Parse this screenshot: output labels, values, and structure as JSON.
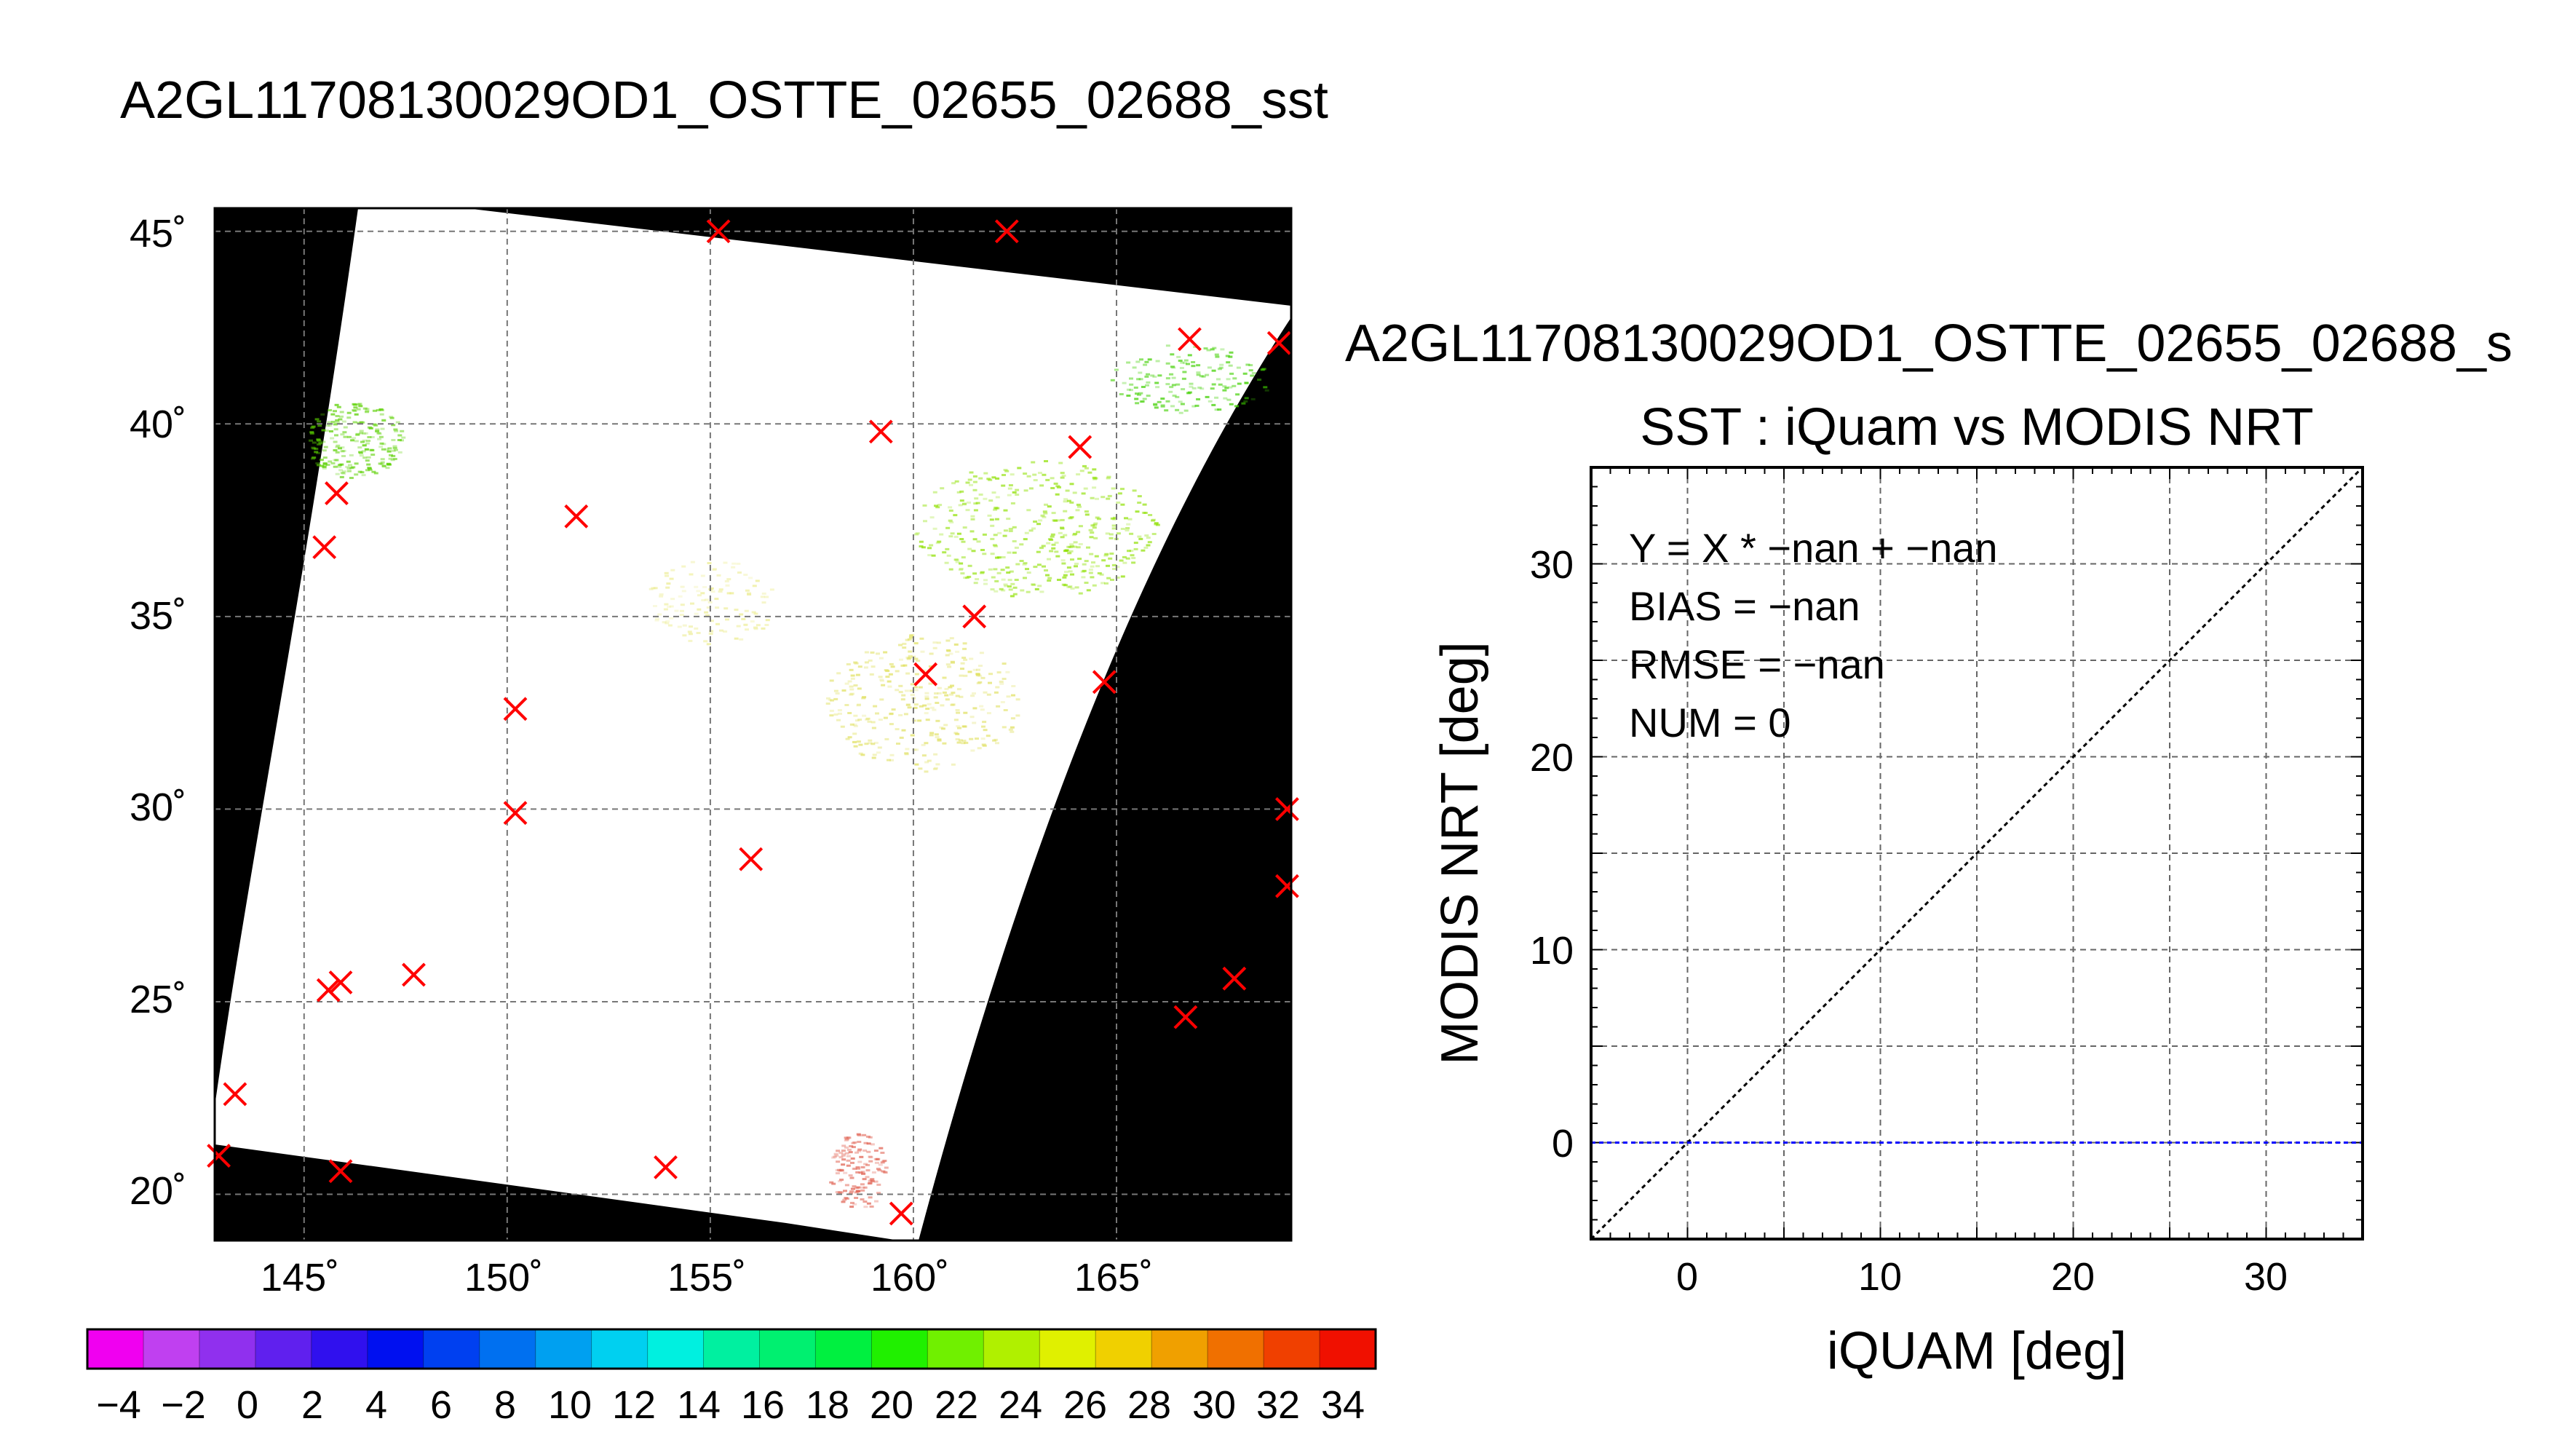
{
  "map": {
    "title": "A2GL11708130029OD1_OSTTE_02655_02688_sst",
    "lon_ticks": [
      "145˚",
      "150˚",
      "155˚",
      "160˚",
      "165˚"
    ],
    "lat_ticks": [
      "45˚",
      "40˚",
      "35˚",
      "30˚",
      "25˚",
      "20˚"
    ],
    "colorbar_labels": [
      "−4",
      "−2",
      "0",
      "2",
      "4",
      "6",
      "8",
      "10",
      "12",
      "14",
      "16",
      "18",
      "20",
      "22",
      "24",
      "26",
      "28",
      "30",
      "32",
      "34"
    ]
  },
  "scatter": {
    "file_title": "A2GL11708130029OD1_OSTTE_02655_02688_s",
    "title": "SST : iQuam vs MODIS NRT",
    "xlabel": "iQUAM [deg]",
    "ylabel": "MODIS NRT [deg]",
    "stats": [
      "Y = X * −nan + −nan",
      "BIAS = −nan",
      "RMSE = −nan",
      "NUM = 0"
    ],
    "x_ticks": [
      "0",
      "10",
      "20",
      "30"
    ],
    "y_ticks": [
      "0",
      "10",
      "20",
      "30"
    ]
  },
  "chart_data": [
    {
      "type": "heatmap",
      "title": "A2GL11708130029OD1_OSTTE_02655_02688_sst",
      "xlim": [
        142.8,
        169.3
      ],
      "ylim": [
        18.8,
        45.6
      ],
      "x_ticks": [
        145,
        150,
        155,
        160,
        165
      ],
      "y_ticks": [
        20,
        25,
        30,
        35,
        40,
        45
      ],
      "grid": true,
      "colorbar": {
        "min": -5,
        "max": 35,
        "ticks": [
          -4,
          -2,
          0,
          2,
          4,
          6,
          8,
          10,
          12,
          14,
          16,
          18,
          20,
          22,
          24,
          26,
          28,
          30,
          32,
          34
        ],
        "colors": [
          "#f000f0",
          "#c040f0",
          "#9030ee",
          "#6020ee",
          "#3010ee",
          "#0010f0",
          "#0040f0",
          "#0070f0",
          "#00a0f0",
          "#00d0f0",
          "#00f0e0",
          "#00f0a0",
          "#00f070",
          "#00f040",
          "#20f000",
          "#70f000",
          "#b0f000",
          "#e0f000",
          "#f0d000",
          "#f0a000",
          "#f07000",
          "#f04000",
          "#f01000"
        ]
      },
      "markers": {
        "symbol": "x",
        "color": "#ff0000",
        "points": [
          {
            "lon": 155.2,
            "lat": 45.0
          },
          {
            "lon": 162.3,
            "lat": 45.0
          },
          {
            "lon": 166.8,
            "lat": 42.2
          },
          {
            "lon": 169.0,
            "lat": 42.1
          },
          {
            "lon": 159.2,
            "lat": 39.8
          },
          {
            "lon": 164.1,
            "lat": 39.4
          },
          {
            "lon": 145.8,
            "lat": 38.2
          },
          {
            "lon": 145.5,
            "lat": 36.8
          },
          {
            "lon": 151.7,
            "lat": 37.6
          },
          {
            "lon": 161.5,
            "lat": 35.0
          },
          {
            "lon": 160.3,
            "lat": 33.5
          },
          {
            "lon": 164.7,
            "lat": 33.3
          },
          {
            "lon": 150.2,
            "lat": 32.6
          },
          {
            "lon": 150.2,
            "lat": 29.9
          },
          {
            "lon": 156.0,
            "lat": 28.7
          },
          {
            "lon": 169.2,
            "lat": 30.0
          },
          {
            "lon": 169.2,
            "lat": 28.0
          },
          {
            "lon": 145.6,
            "lat": 25.3
          },
          {
            "lon": 145.9,
            "lat": 25.5
          },
          {
            "lon": 147.7,
            "lat": 25.7
          },
          {
            "lon": 167.9,
            "lat": 25.6
          },
          {
            "lon": 166.7,
            "lat": 24.6
          },
          {
            "lon": 143.3,
            "lat": 22.6
          },
          {
            "lon": 142.9,
            "lat": 21.0
          },
          {
            "lon": 145.9,
            "lat": 20.6
          },
          {
            "lon": 153.9,
            "lat": 20.7
          },
          {
            "lon": 159.7,
            "lat": 19.5
          }
        ]
      }
    },
    {
      "type": "scatter",
      "title": "SST : iQuam vs MODIS NRT",
      "xlabel": "iQUAM [deg]",
      "ylabel": "MODIS NRT [deg]",
      "xlim": [
        -5,
        35
      ],
      "ylim": [
        -5,
        35
      ],
      "x_ticks": [
        0,
        10,
        20,
        30
      ],
      "y_ticks": [
        0,
        10,
        20,
        30
      ],
      "grid": true,
      "points": [],
      "reference_lines": [
        {
          "kind": "identity",
          "from": [
            -5,
            -5
          ],
          "to": [
            35,
            35
          ],
          "color": "#000000"
        },
        {
          "kind": "horizontal",
          "y": 0,
          "color": "#0000ff"
        }
      ]
    }
  ]
}
